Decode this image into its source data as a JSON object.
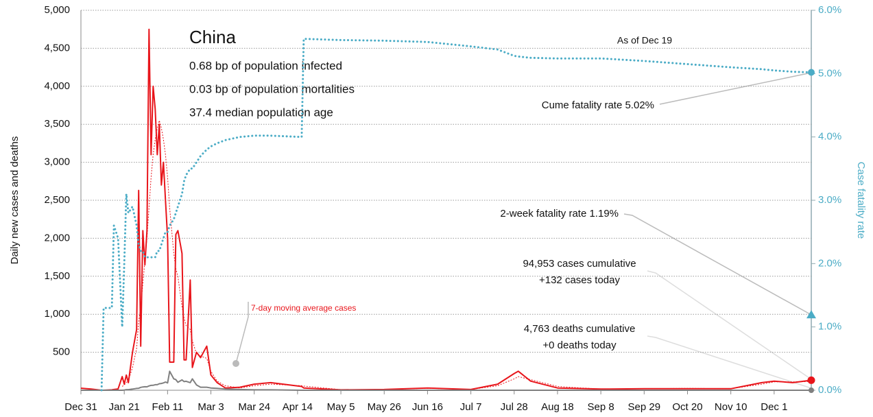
{
  "chart_data": {
    "type": "line",
    "title": "China",
    "info": [
      "0.68 bp of population infected",
      "0.03 bp of population mortalities",
      "37.4 median population age"
    ],
    "as_of": "As of Dec 19",
    "ylabel": "Daily new cases and deaths",
    "y2label": "Case fatality rate",
    "ylim": [
      0,
      5000
    ],
    "yticks": [
      {
        "value": 500,
        "label": "500"
      },
      {
        "value": 1000,
        "label": "1,000"
      },
      {
        "value": 1500,
        "label": "1,500"
      },
      {
        "value": 2000,
        "label": "2,000"
      },
      {
        "value": 2500,
        "label": "2,500"
      },
      {
        "value": 3000,
        "label": "3,000"
      },
      {
        "value": 3500,
        "label": "3,500"
      },
      {
        "value": 4000,
        "label": "4,000"
      },
      {
        "value": 4500,
        "label": "4,500"
      },
      {
        "value": 5000,
        "label": "5,000"
      }
    ],
    "y2lim": [
      0,
      6
    ],
    "y2ticks": [
      {
        "value": 0,
        "label": "0.0%"
      },
      {
        "value": 1,
        "label": "1.0%"
      },
      {
        "value": 2,
        "label": "2.0%"
      },
      {
        "value": 3,
        "label": "3.0%"
      },
      {
        "value": 4,
        "label": "4.0%"
      },
      {
        "value": 5,
        "label": "5.0%"
      },
      {
        "value": 6,
        "label": "6.0%"
      }
    ],
    "xticks": [
      "Dec 31",
      "Jan 21",
      "Feb 11",
      "Mar 3",
      "Mar 24",
      "Apr 14",
      "May 5",
      "May 26",
      "Jun 16",
      "Jul 7",
      "Jul 28",
      "Aug 18",
      "Sep 8",
      "Sep 29",
      "Oct 20",
      "Nov 10",
      "Dec 1"
    ],
    "grid": true,
    "x": [
      "Dec 31",
      "Jan 5",
      "Jan 10",
      "Jan 11",
      "Jan 15",
      "Jan 16",
      "Jan 18",
      "Jan 20",
      "Jan 21",
      "Jan 22",
      "Jan 23",
      "Jan 25",
      "Jan 27",
      "Jan 28",
      "Jan 29",
      "Jan 30",
      "Jan 31",
      "Feb 1",
      "Feb 2",
      "Feb 3",
      "Feb 4",
      "Feb 5",
      "Feb 6",
      "Feb 7",
      "Feb 8",
      "Feb 9",
      "Feb 10",
      "Feb 11",
      "Feb 12",
      "Feb 14",
      "Feb 15",
      "Feb 16",
      "Feb 18",
      "Feb 19",
      "Feb 20",
      "Feb 22",
      "Feb 23",
      "Feb 25",
      "Feb 27",
      "Mar 1",
      "Mar 3",
      "Mar 6",
      "Mar 10",
      "Mar 17",
      "Mar 24",
      "Apr 1",
      "Apr 16",
      "Apr 17",
      "May 5",
      "May 26",
      "Jun 16",
      "Jul 7",
      "Jul 20",
      "Jul 28",
      "Jul 30",
      "Aug 5",
      "Aug 18",
      "Sep 8",
      "Sep 29",
      "Oct 20",
      "Nov 10",
      "Nov 25",
      "Dec 1",
      "Dec 10",
      "Dec 19"
    ],
    "series": [
      {
        "name": "Daily new cases",
        "color": "#e8151b",
        "style": "solid",
        "width": 2,
        "values": [
          27,
          15,
          0,
          0,
          5,
          10,
          17,
          180,
          80,
          200,
          100,
          500,
          800,
          2630,
          580,
          2100,
          1650,
          2100,
          4750,
          3100,
          4000,
          3700,
          3100,
          3500,
          2700,
          3000,
          2500,
          2000,
          370,
          370,
          2050,
          2100,
          1800,
          400,
          400,
          1450,
          300,
          500,
          430,
          580,
          200,
          100,
          30,
          40,
          80,
          100,
          50,
          30,
          5,
          10,
          30,
          10,
          80,
          220,
          250,
          120,
          30,
          15,
          20,
          20,
          20,
          100,
          120,
          100,
          132
        ]
      },
      {
        "name": "7-day moving average cases",
        "color": "#e8151b",
        "style": "dashed",
        "width": 1,
        "values": [
          null,
          null,
          null,
          null,
          null,
          null,
          null,
          50,
          70,
          100,
          130,
          300,
          550,
          900,
          1100,
          1400,
          1700,
          2000,
          2400,
          2800,
          3100,
          3300,
          3450,
          3550,
          3450,
          3300,
          3100,
          2800,
          2400,
          1800,
          1600,
          1500,
          1100,
          950,
          850,
          800,
          650,
          480,
          450,
          420,
          250,
          120,
          60,
          30,
          60,
          80,
          60,
          55,
          8,
          10,
          25,
          10,
          60,
          150,
          180,
          140,
          50,
          15,
          20,
          25,
          20,
          80,
          110,
          110,
          115
        ]
      },
      {
        "name": "Daily deaths",
        "color": "#7f7f7f",
        "style": "solid",
        "width": 2,
        "values": [
          0,
          0,
          0,
          1,
          0,
          0,
          0,
          0,
          3,
          8,
          8,
          15,
          24,
          26,
          38,
          43,
          46,
          45,
          57,
          64,
          65,
          73,
          73,
          86,
          89,
          97,
          108,
          97,
          250,
          150,
          140,
          105,
          136,
          114,
          118,
          100,
          150,
          70,
          40,
          40,
          30,
          25,
          15,
          10,
          5,
          5,
          0,
          0,
          0,
          0,
          0,
          0,
          0,
          0,
          0,
          0,
          0,
          0,
          0,
          0,
          0,
          0,
          0,
          0,
          0
        ]
      },
      {
        "name": "Case fatality rate",
        "color": "#4bacc6",
        "style": "dotted",
        "width": 3,
        "axis": "y2",
        "values": [
          null,
          null,
          0,
          1.3,
          1.3,
          2.6,
          2.4,
          1.0,
          2.0,
          3.1,
          2.8,
          2.9,
          2.6,
          2.3,
          2.2,
          2.2,
          2.1,
          2.1,
          2.1,
          2.1,
          2.1,
          2.1,
          2.2,
          2.2,
          2.3,
          2.4,
          2.5,
          2.5,
          2.6,
          2.7,
          2.8,
          2.9,
          3.1,
          3.3,
          3.4,
          3.5,
          3.5,
          3.6,
          3.7,
          3.8,
          3.85,
          3.9,
          3.95,
          4.0,
          4.02,
          4.02,
          4.0,
          5.55,
          5.53,
          5.52,
          5.5,
          5.43,
          5.38,
          5.28,
          5.27,
          5.25,
          5.24,
          5.24,
          5.2,
          5.15,
          5.1,
          5.07,
          5.05,
          5.03,
          5.02
        ]
      }
    ],
    "annotations": [
      {
        "text": "Cume fatality rate 5.02%",
        "value": 5.02
      },
      {
        "text": "2-week fatality rate 1.19%",
        "value": 1.19
      },
      {
        "text": [
          "94,953 cases cumulative",
          "+132 cases today"
        ]
      },
      {
        "text": [
          "4,763 deaths cumulative",
          "+0 deaths today"
        ]
      }
    ]
  }
}
